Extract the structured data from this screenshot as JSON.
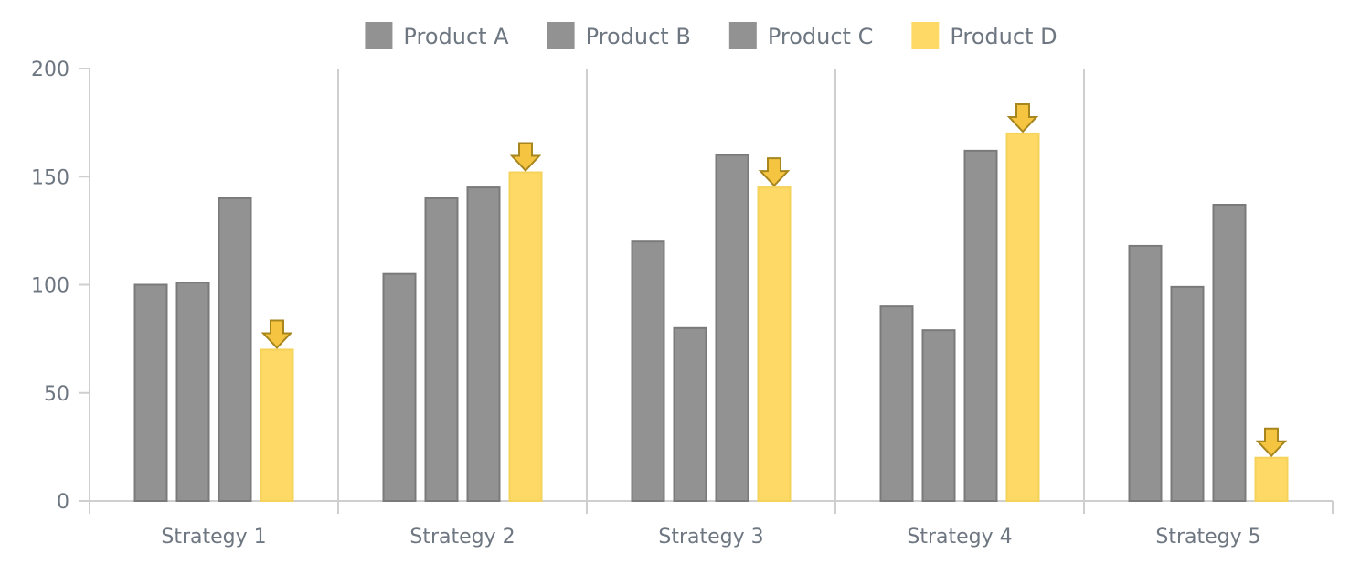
{
  "chart_data": {
    "type": "bar",
    "title": "",
    "xlabel": "",
    "ylabel": "",
    "categories": [
      "Strategy 1",
      "Strategy 2",
      "Strategy 3",
      "Strategy 4",
      "Strategy 5"
    ],
    "series": [
      {
        "name": "Product A",
        "values": [
          100,
          105,
          120,
          90,
          118
        ],
        "color": "#929292"
      },
      {
        "name": "Product B",
        "values": [
          101,
          140,
          80,
          79,
          99
        ],
        "color": "#929292"
      },
      {
        "name": "Product C",
        "values": [
          140,
          145,
          160,
          162,
          137
        ],
        "color": "#929292"
      },
      {
        "name": "Product D",
        "values": [
          70,
          152,
          145,
          170,
          20
        ],
        "color": "#ffd966"
      }
    ],
    "highlight_series": "Product D",
    "highlight_marker": "arrow-down-icon",
    "ylim": [
      0,
      200
    ],
    "yticks": [
      0,
      50,
      100,
      150,
      200
    ],
    "grid": false,
    "category_separators": true,
    "legend_position": "top-center"
  }
}
